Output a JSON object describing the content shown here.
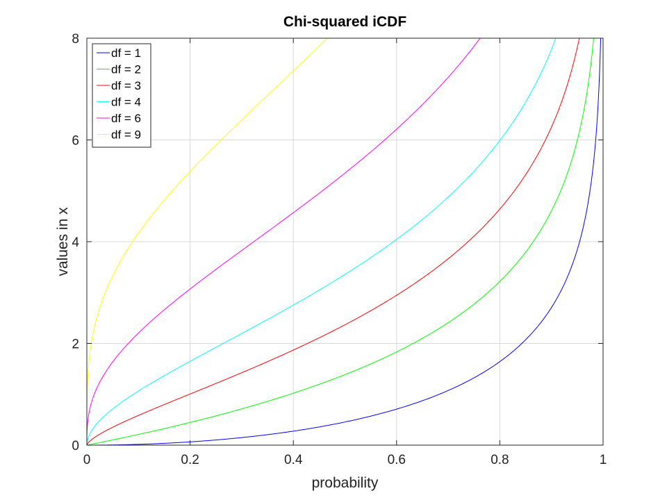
{
  "chart_data": {
    "type": "line",
    "title": "Chi-squared iCDF",
    "xlabel": "probability",
    "ylabel": "values in x",
    "xlim": [
      0,
      1
    ],
    "ylim": [
      0,
      8
    ],
    "xticks": [
      0,
      0.2,
      0.4,
      0.6,
      0.8,
      1
    ],
    "xtick_labels": [
      "0",
      "0.2",
      "0.4",
      "0.6",
      "0.8",
      "1"
    ],
    "yticks": [
      0,
      2,
      4,
      6,
      8
    ],
    "ytick_labels": [
      "0",
      "2",
      "4",
      "6",
      "8"
    ],
    "grid": true,
    "legend_position": "top-left",
    "series": [
      {
        "name": "df = 1",
        "df": 1,
        "color": "#0000ff"
      },
      {
        "name": "df = 2",
        "df": 2,
        "color": "#00ff00"
      },
      {
        "name": "df = 3",
        "df": 3,
        "color": "#ff0000"
      },
      {
        "name": "df = 4",
        "df": 4,
        "color": "#00ffff"
      },
      {
        "name": "df = 6",
        "df": 6,
        "color": "#ff00ff"
      },
      {
        "name": "df = 9",
        "df": 9,
        "color": "#ffff00"
      }
    ]
  }
}
